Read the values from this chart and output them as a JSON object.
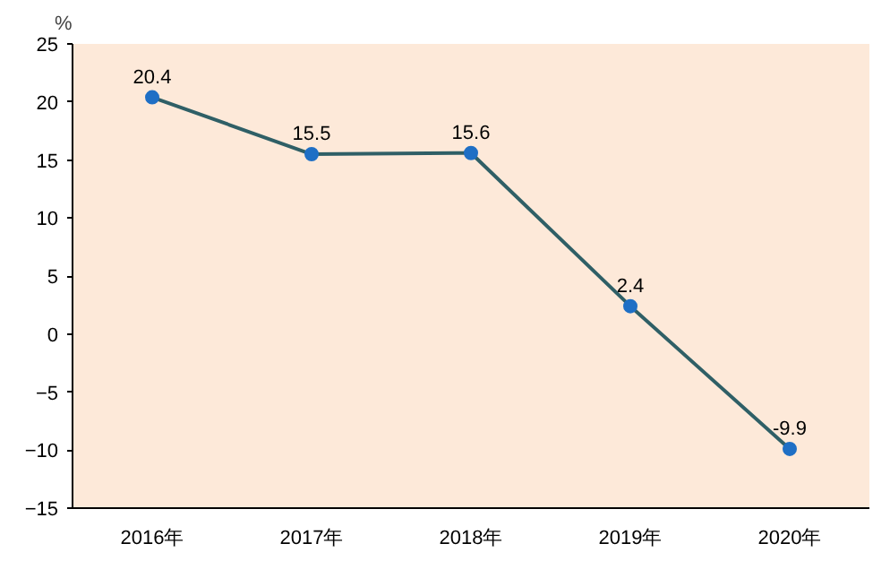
{
  "chart_data": {
    "type": "line",
    "ylabel": "%",
    "categories": [
      "2016年",
      "2017年",
      "2018年",
      "2019年",
      "2020年"
    ],
    "series": [
      {
        "color": "#2f5f66",
        "values": [
          20.4,
          15.5,
          15.6,
          2.4,
          -9.9
        ]
      }
    ],
    "marker": "circle",
    "line_style": "solid",
    "data_labels": true,
    "ylim": [
      -15,
      25
    ],
    "yticks": [
      -15,
      -10,
      -5,
      0,
      5,
      10,
      15,
      20,
      25
    ],
    "grid": false
  }
}
